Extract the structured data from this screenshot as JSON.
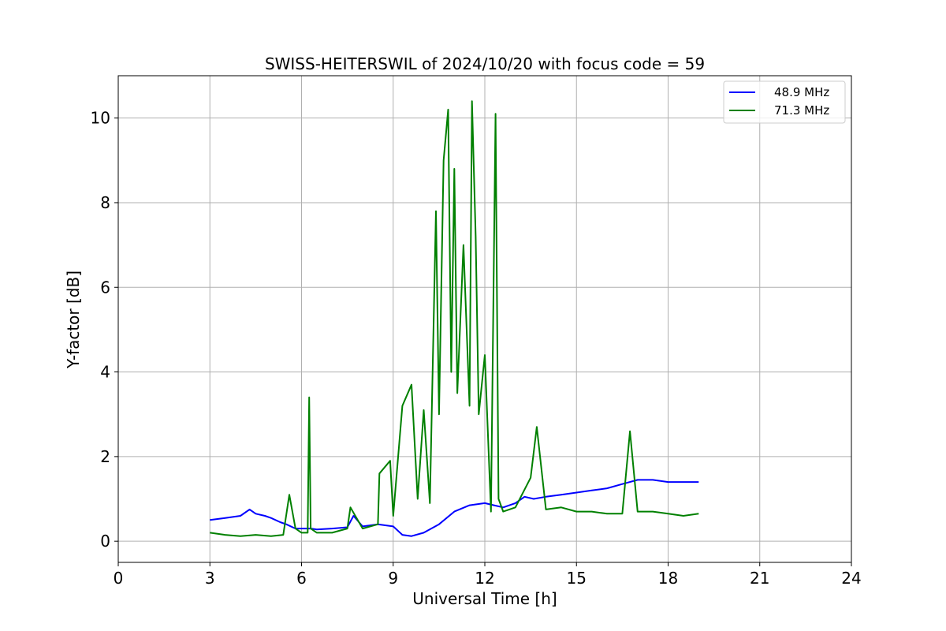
{
  "chart_data": {
    "type": "line",
    "title": "SWISS-HEITERSWIL of 2024/10/20 with focus code = 59",
    "xlabel": "Universal Time [h]",
    "ylabel": "Y-factor [dB]",
    "xlim": [
      0,
      24
    ],
    "ylim": [
      -0.5,
      11
    ],
    "xticks": [
      0,
      3,
      6,
      9,
      12,
      15,
      18,
      21,
      24
    ],
    "yticks": [
      0,
      2,
      4,
      6,
      8,
      10
    ],
    "grid": true,
    "legend_position": "top-right",
    "series": [
      {
        "name": "48.9 MHz",
        "color": "#0000ff",
        "x": [
          3.0,
          3.5,
          4.0,
          4.3,
          4.5,
          4.8,
          5.0,
          5.3,
          5.5,
          5.8,
          6.0,
          6.3,
          6.5,
          7.0,
          7.5,
          7.7,
          8.0,
          8.5,
          9.0,
          9.3,
          9.6,
          10.0,
          10.5,
          11.0,
          11.5,
          12.0,
          12.3,
          12.6,
          13.0,
          13.3,
          13.6,
          14.0,
          14.5,
          15.0,
          15.5,
          16.0,
          16.5,
          17.0,
          17.5,
          18.0,
          18.5,
          19.0
        ],
        "y": [
          0.5,
          0.55,
          0.6,
          0.75,
          0.65,
          0.6,
          0.55,
          0.45,
          0.4,
          0.3,
          0.3,
          0.3,
          0.28,
          0.3,
          0.33,
          0.6,
          0.35,
          0.4,
          0.35,
          0.15,
          0.12,
          0.2,
          0.4,
          0.7,
          0.85,
          0.9,
          0.85,
          0.8,
          0.9,
          1.05,
          1.0,
          1.05,
          1.1,
          1.15,
          1.2,
          1.25,
          1.35,
          1.45,
          1.45,
          1.4,
          1.4,
          1.4
        ]
      },
      {
        "name": "71.3 MHz",
        "color": "#008000",
        "x": [
          3.0,
          3.5,
          4.0,
          4.5,
          5.0,
          5.4,
          5.6,
          5.8,
          6.0,
          6.2,
          6.25,
          6.3,
          6.5,
          7.0,
          7.5,
          7.6,
          8.0,
          8.5,
          8.55,
          8.9,
          9.0,
          9.3,
          9.6,
          9.8,
          10.0,
          10.2,
          10.4,
          10.5,
          10.65,
          10.8,
          10.9,
          11.0,
          11.1,
          11.3,
          11.5,
          11.58,
          11.7,
          11.8,
          12.0,
          12.2,
          12.35,
          12.45,
          12.6,
          13.0,
          13.5,
          13.7,
          14.0,
          14.5,
          15.0,
          15.5,
          16.0,
          16.5,
          16.75,
          17.0,
          17.5,
          18.0,
          18.5,
          19.0
        ],
        "y": [
          0.2,
          0.15,
          0.12,
          0.15,
          0.12,
          0.15,
          1.1,
          0.3,
          0.2,
          0.2,
          3.4,
          0.3,
          0.2,
          0.2,
          0.3,
          0.8,
          0.3,
          0.4,
          1.6,
          1.9,
          0.6,
          3.2,
          3.7,
          1.0,
          3.1,
          0.9,
          7.8,
          3.0,
          9.0,
          10.2,
          4.0,
          8.8,
          3.5,
          7.0,
          3.2,
          10.4,
          7.2,
          3.0,
          4.4,
          0.7,
          10.1,
          1.0,
          0.7,
          0.8,
          1.5,
          2.7,
          0.75,
          0.8,
          0.7,
          0.7,
          0.65,
          0.65,
          2.6,
          0.7,
          0.7,
          0.65,
          0.6,
          0.65
        ]
      }
    ]
  }
}
